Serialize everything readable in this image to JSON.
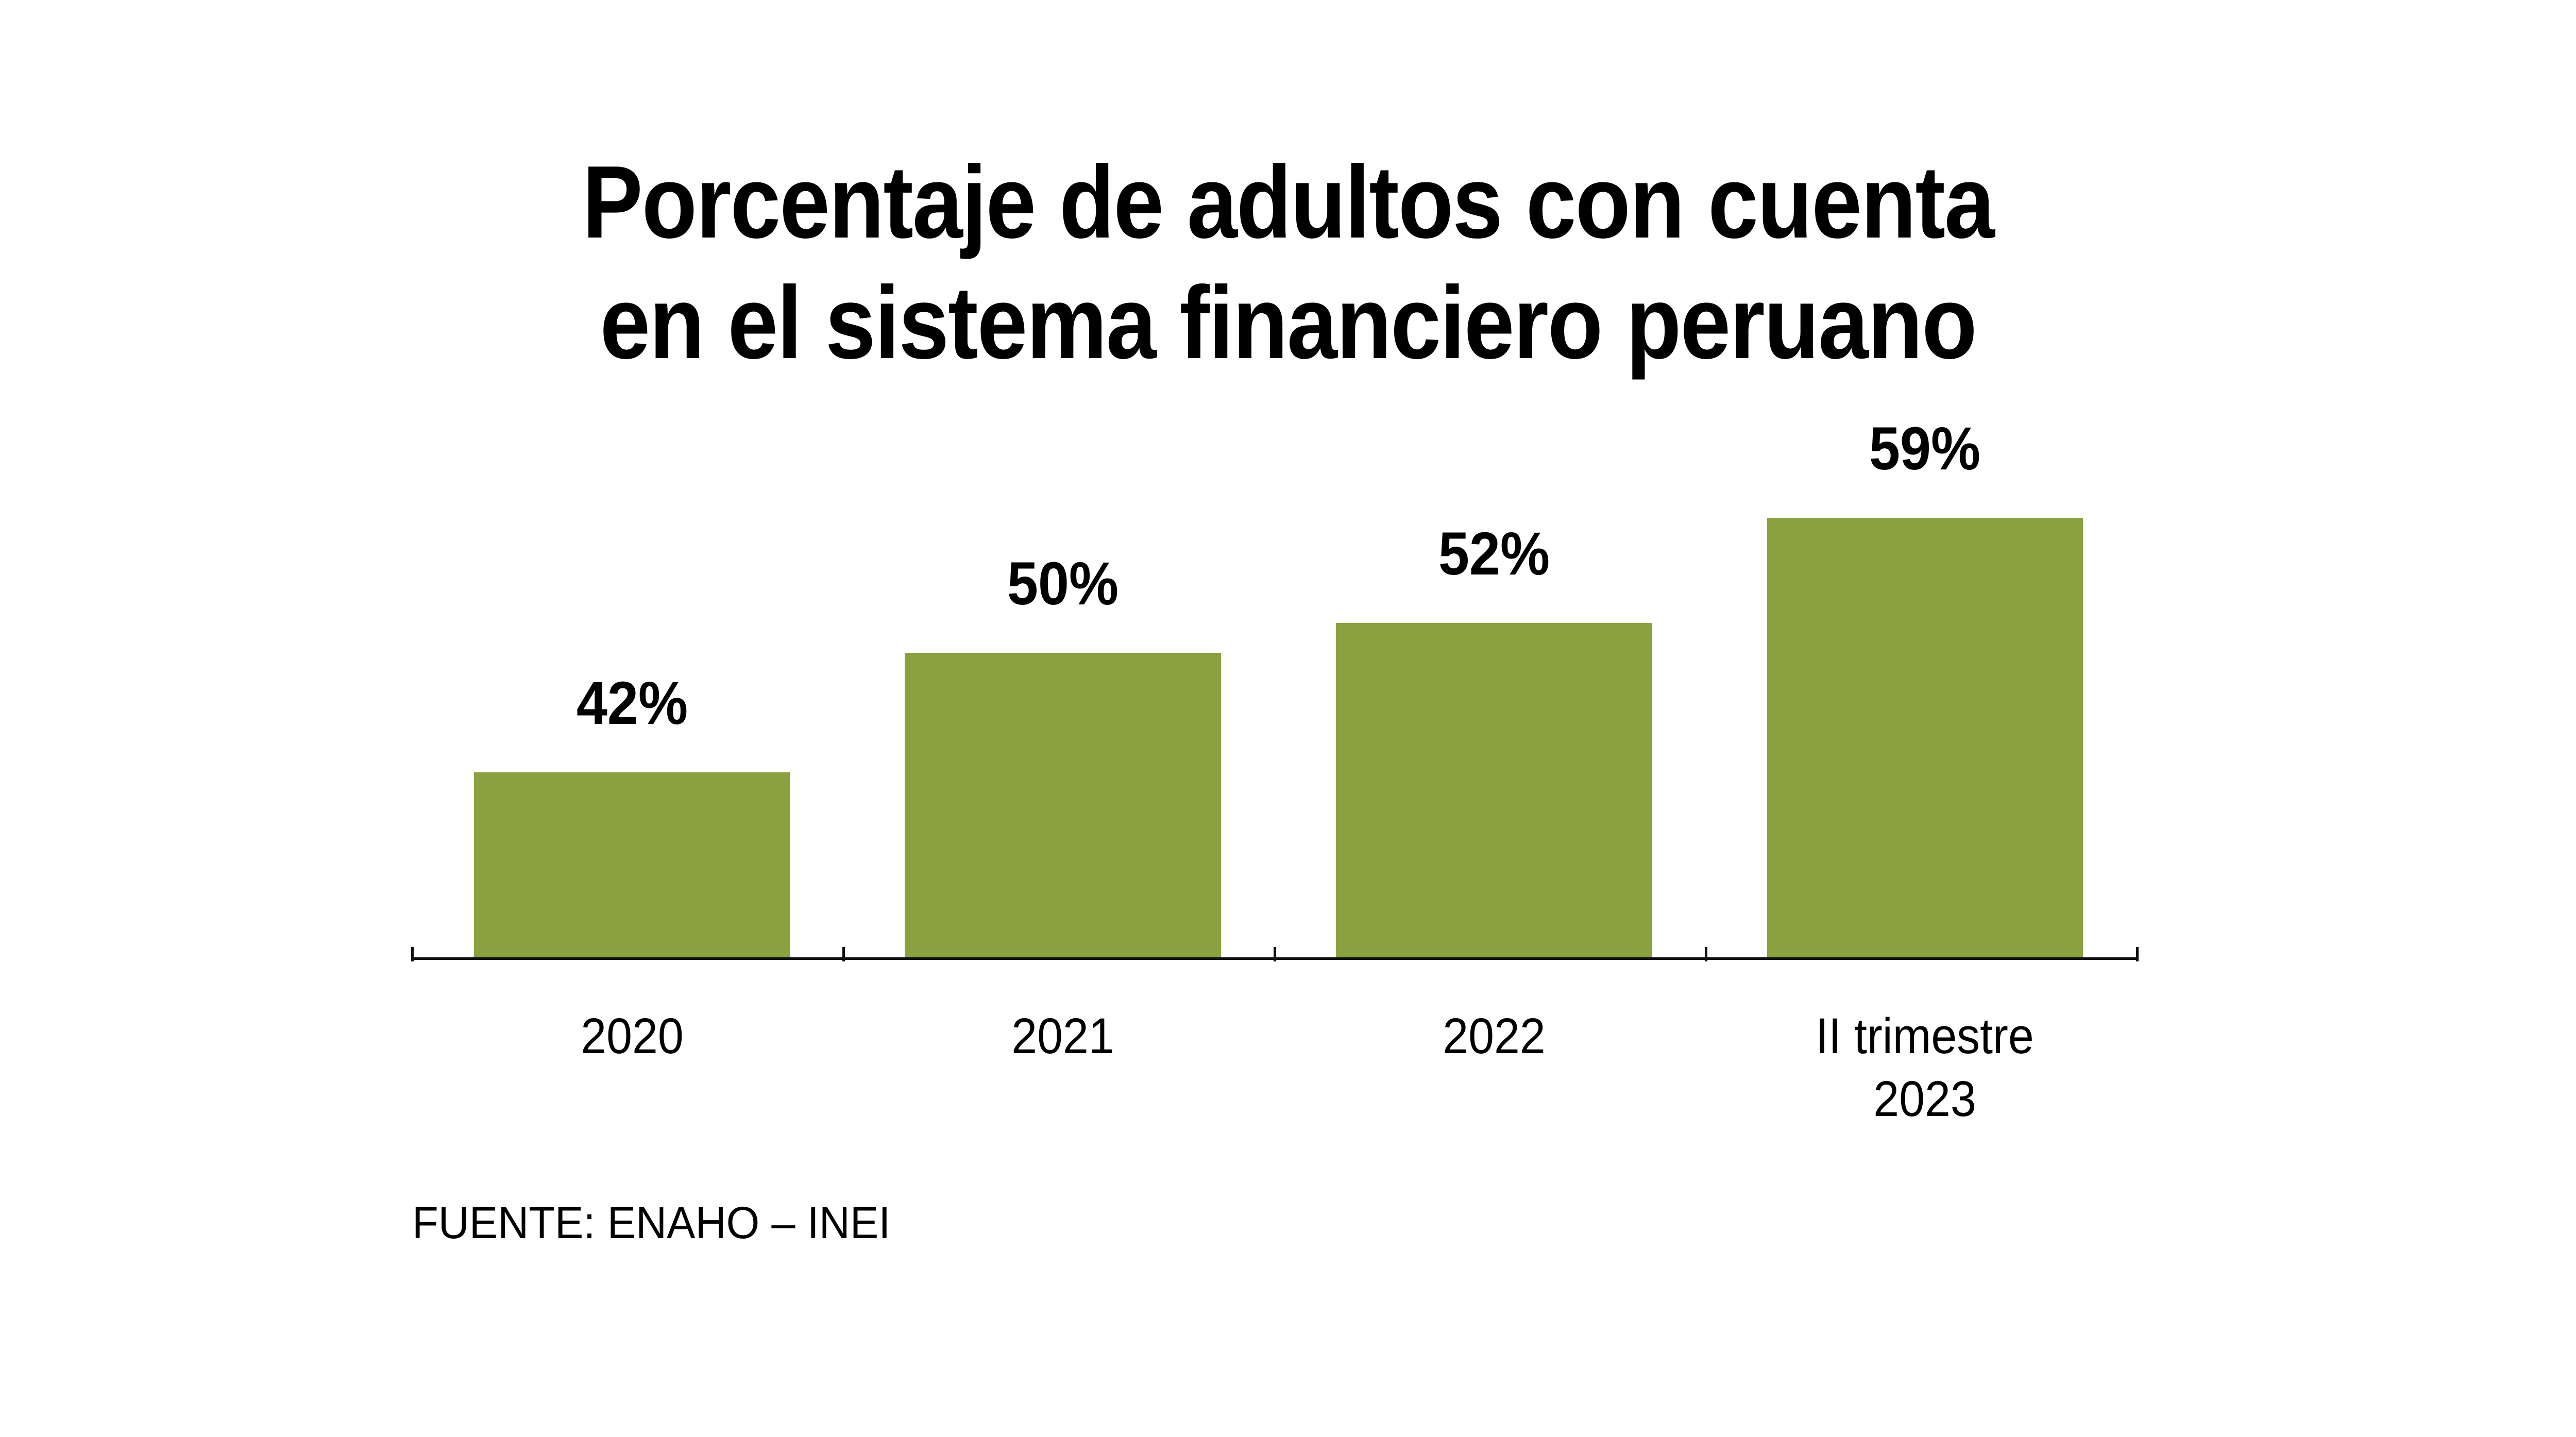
{
  "page": {
    "background": "#FFFFFF"
  },
  "chart_data": {
    "type": "bar",
    "title": "Porcentaje de adultos con cuenta en el sistema financiero peruano",
    "title_lines": [
      "Porcentaje de adultos con cuenta",
      "en el sistema financiero peruano"
    ],
    "categories": [
      "2020",
      "2021",
      "2022",
      "II trimestre\n2023"
    ],
    "values": [
      42,
      50,
      52,
      59
    ],
    "value_labels": [
      "42%",
      "50%",
      "52%",
      "59%"
    ],
    "unit": "%",
    "source": "FUENTE: ENAHO – INEI",
    "bar_color": "#8AA23D",
    "text_color": "#000000",
    "axis_color": "#111111",
    "ylim": [
      29.65,
      60
    ],
    "grid": false,
    "legend": false,
    "xlabel": "",
    "ylabel": ""
  }
}
